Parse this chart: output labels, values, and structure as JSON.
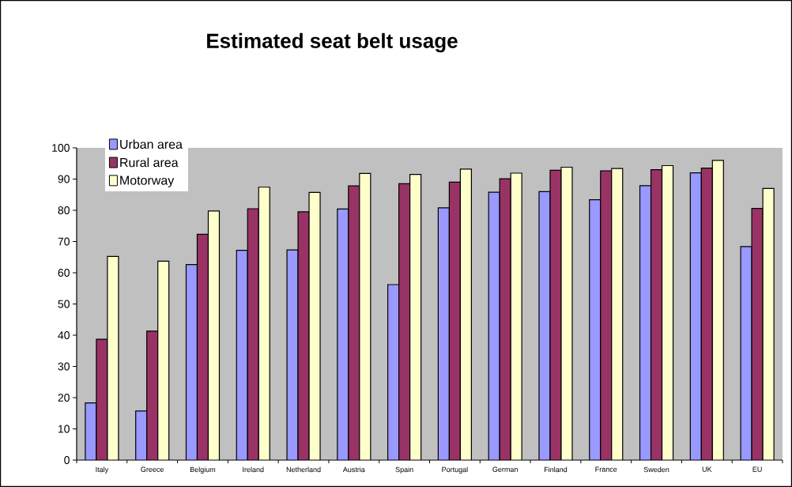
{
  "chart_data": {
    "type": "bar",
    "title": "Estimated seat belt usage",
    "categories": [
      "Italy",
      "Greece",
      "Belgium",
      "Ireland",
      "Netherland",
      "Austria",
      "Spain",
      "Portugal",
      "German",
      "Finland",
      "France",
      "Sweden",
      "UK",
      "EU"
    ],
    "series": [
      {
        "name": "Urban area",
        "color": "#9999ff",
        "values": [
          18.3,
          15.7,
          62.6,
          67.2,
          67.3,
          80.4,
          56.2,
          80.8,
          85.8,
          86.0,
          83.4,
          87.9,
          92.0,
          68.4
        ]
      },
      {
        "name": "Rural area",
        "color": "#993366",
        "values": [
          38.7,
          41.3,
          72.3,
          80.5,
          79.5,
          87.8,
          88.5,
          89.0,
          90.1,
          92.8,
          92.6,
          93.0,
          93.5,
          80.6
        ]
      },
      {
        "name": "Motorway",
        "color": "#ffffcc",
        "values": [
          65.2,
          63.7,
          79.8,
          87.4,
          85.7,
          91.8,
          91.5,
          93.2,
          91.9,
          93.8,
          93.4,
          94.3,
          96.0,
          87.0
        ]
      }
    ],
    "ylim": [
      0,
      100
    ],
    "yticks": [
      0,
      10,
      20,
      30,
      40,
      50,
      60,
      70,
      80,
      90,
      100
    ],
    "grid": false,
    "legend": "top left"
  }
}
